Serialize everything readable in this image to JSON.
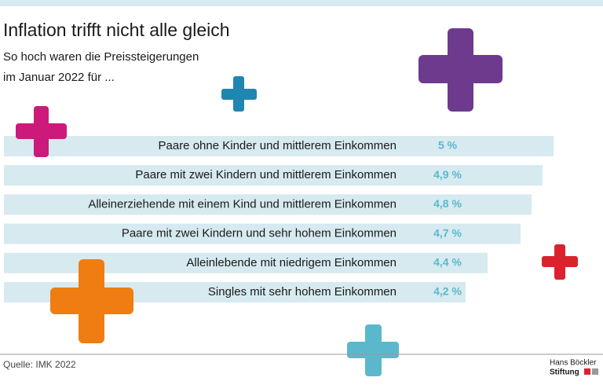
{
  "chart_data": {
    "type": "bar",
    "orientation": "horizontal",
    "title": "Inflation trifft nicht alle gleich",
    "subtitle": [
      "So hoch waren die Preissteigerungen",
      "im Januar 2022 für ..."
    ],
    "categories": [
      "Paare ohne Kinder und mittlerem Einkommen",
      "Paare mit zwei Kindern und mittlerem Einkommen",
      "Alleinerziehende mit einem Kind und mittlerem Einkommen",
      "Paare mit zwei Kindern und sehr hohem Einkommen",
      "Alleinlebende mit niedrigem Einkommen",
      "Singles mit sehr hohem Einkommen"
    ],
    "values": [
      5,
      4.9,
      4.8,
      4.7,
      4.4,
      4.2
    ],
    "value_labels": [
      "5 %",
      "4,9 %",
      "4,8 %",
      "4,7 %",
      "4,4 %",
      "4,2 %"
    ],
    "color": "#d6eaf0",
    "source": "Quelle: IMK 2022",
    "logo": [
      "Hans Böckler",
      "Stiftung"
    ]
  }
}
